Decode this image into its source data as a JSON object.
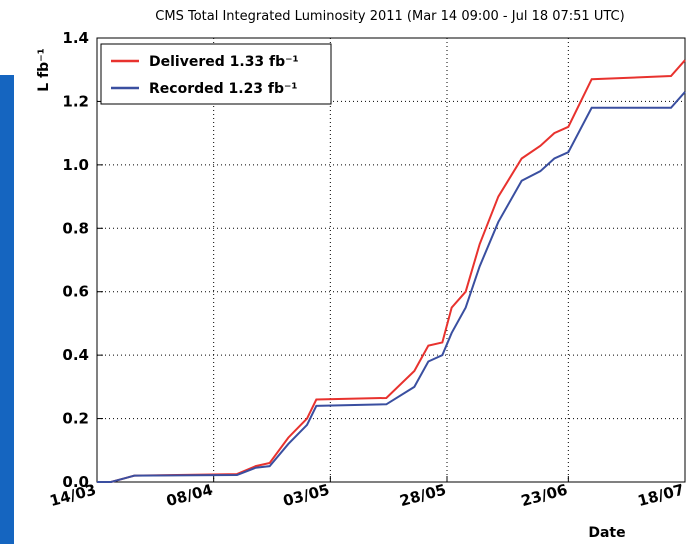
{
  "chart_data": {
    "type": "line",
    "title": "CMS Total Integrated Luminosity 2011 (Mar 14 09:00 - Jul 18 07:51 UTC)",
    "y_label": "L fb⁻¹",
    "x_label": "Date",
    "x": [
      "14/03",
      "17/03",
      "22/03",
      "13/04",
      "17/04",
      "20/04",
      "24/04",
      "28/04",
      "30/04",
      "15/05",
      "21/05",
      "24/05",
      "27/05",
      "29/05",
      "01/06",
      "04/06",
      "08/06",
      "13/06",
      "17/06",
      "20/06",
      "23/06",
      "28/06",
      "15/07",
      "18/07"
    ],
    "series": [
      {
        "name": "Delivered 1.33 fb⁻¹",
        "color": "#e8322e",
        "values": [
          0,
          0,
          0.02,
          0.025,
          0.05,
          0.06,
          0.14,
          0.2,
          0.26,
          0.265,
          0.35,
          0.43,
          0.44,
          0.55,
          0.6,
          0.75,
          0.9,
          1.02,
          1.06,
          1.1,
          1.12,
          1.27,
          1.28,
          1.33
        ]
      },
      {
        "name": "Recorded 1.23 fb⁻¹",
        "color": "#3a4fa0",
        "values": [
          0,
          0,
          0.02,
          0.022,
          0.045,
          0.05,
          0.12,
          0.18,
          0.24,
          0.245,
          0.3,
          0.38,
          0.4,
          0.47,
          0.55,
          0.68,
          0.82,
          0.95,
          0.98,
          1.02,
          1.04,
          1.18,
          1.18,
          1.23
        ]
      }
    ],
    "xlim": [
      "14/03",
      "18/07"
    ],
    "xticks": [
      "14/03",
      "08/04",
      "03/05",
      "28/05",
      "23/06",
      "18/07"
    ],
    "ylim": [
      0,
      1.4
    ],
    "yticks": [
      0,
      0.2,
      0.4,
      0.6,
      0.8,
      1,
      1.2,
      1.4
    ],
    "grid": true,
    "legend": "upper left"
  }
}
